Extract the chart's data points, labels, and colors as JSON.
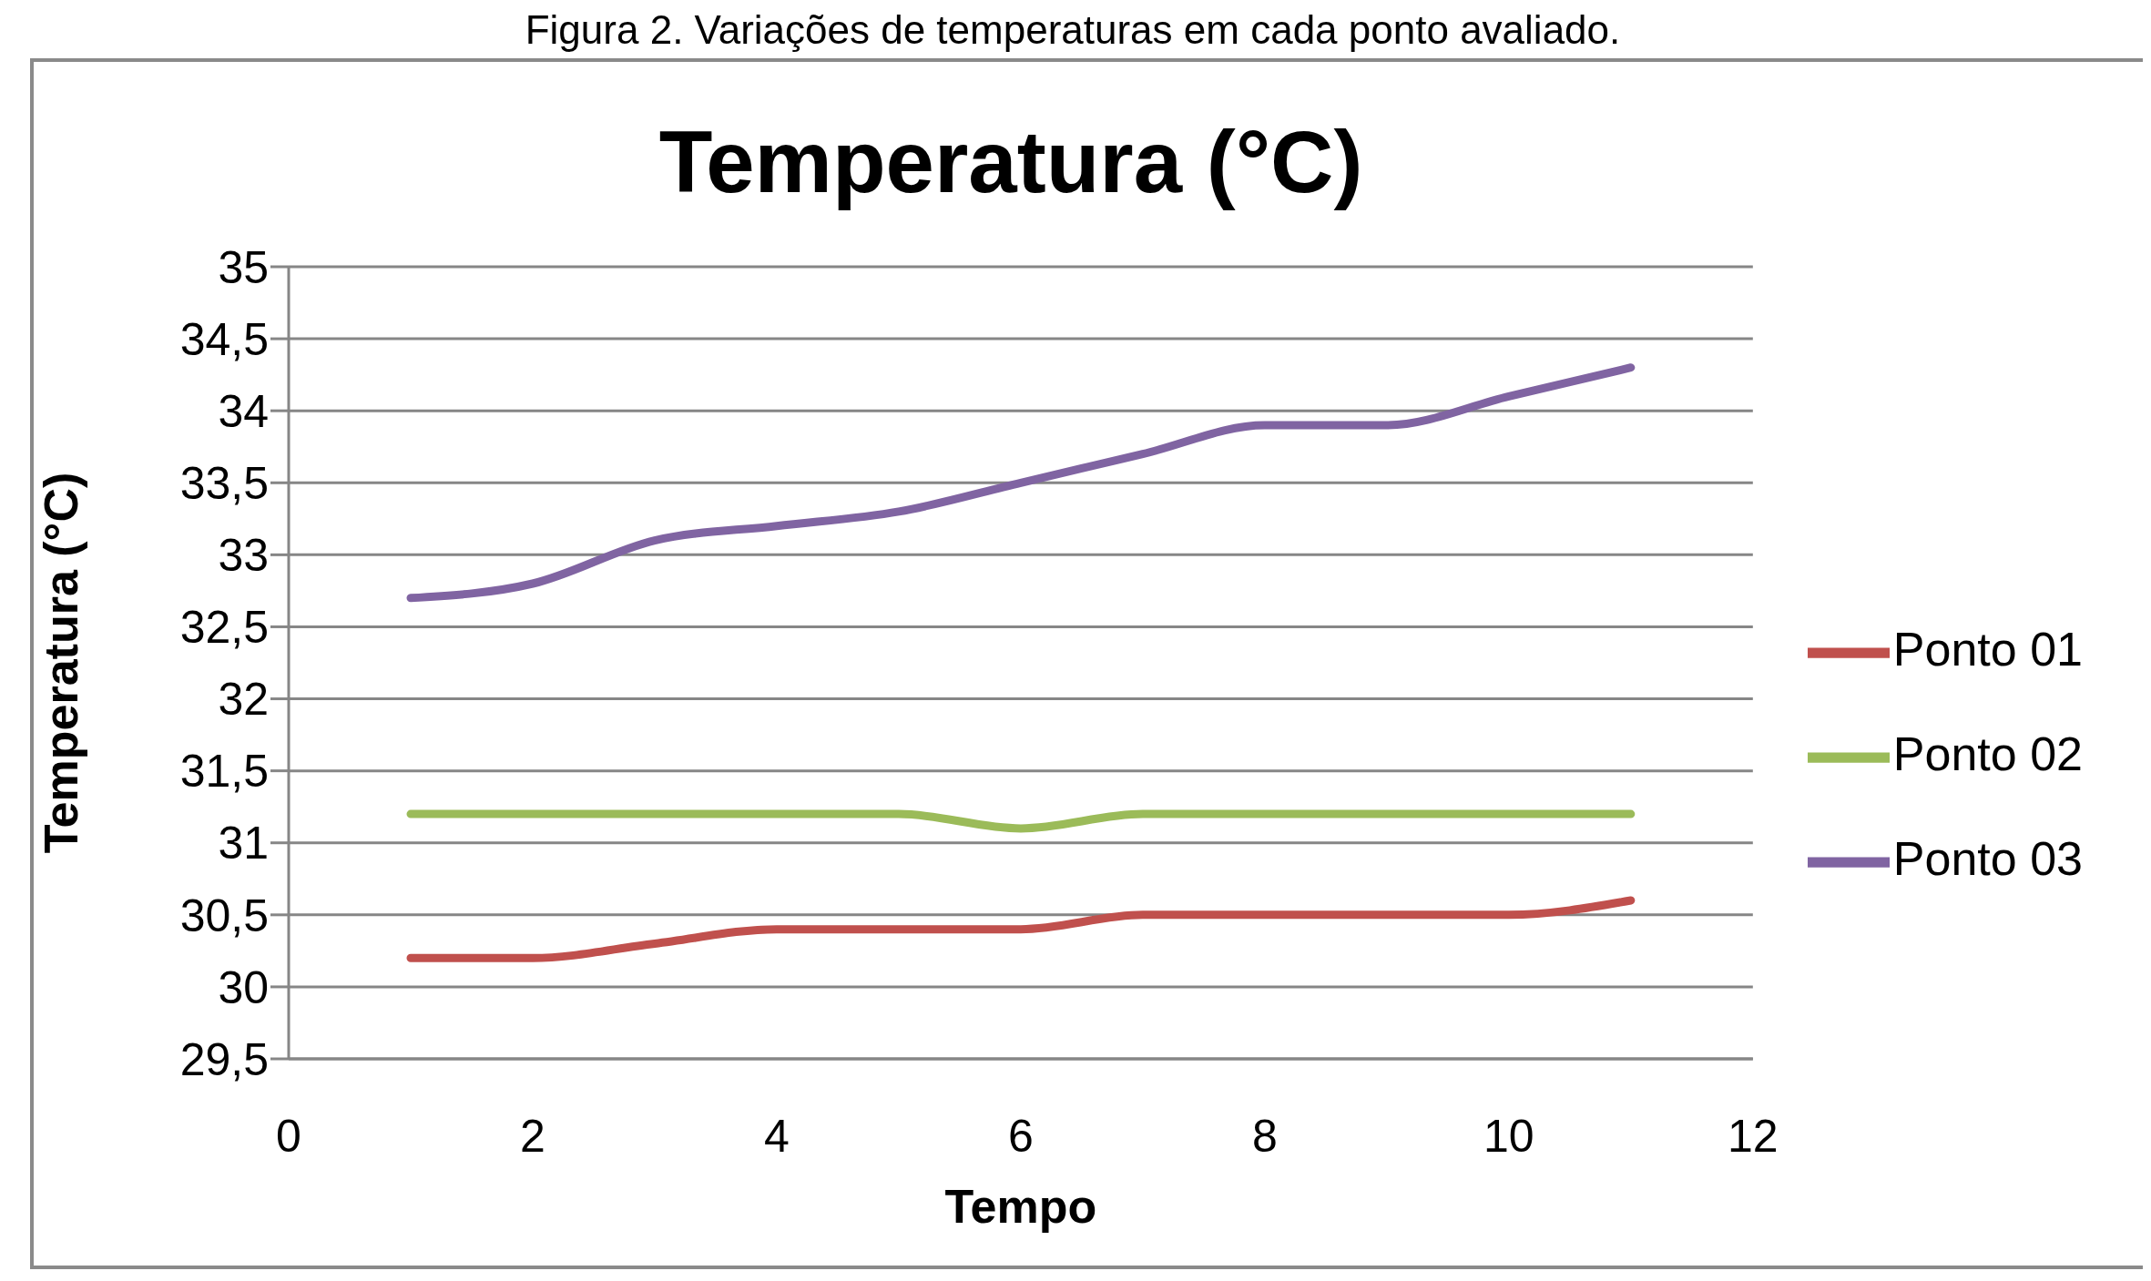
{
  "chart_data": {
    "type": "line",
    "title": "Temperatura (°C)",
    "xlabel": "Tempo",
    "ylabel": "Temperatura (°C)",
    "annotations": [
      "Figura 2. Variações de temperaturas em cada ponto avaliado."
    ],
    "x": [
      1,
      2,
      3,
      4,
      5,
      6,
      7,
      8,
      9,
      10,
      11
    ],
    "series": [
      {
        "name": "Ponto 01",
        "color": "#c0504d",
        "values": [
          30.2,
          30.2,
          30.3,
          30.4,
          30.4,
          30.4,
          30.5,
          30.5,
          30.5,
          30.5,
          30.6
        ]
      },
      {
        "name": "Ponto 02",
        "color": "#9bbb59",
        "values": [
          31.2,
          31.2,
          31.2,
          31.2,
          31.2,
          31.1,
          31.2,
          31.2,
          31.2,
          31.2,
          31.2
        ]
      },
      {
        "name": "Ponto 03",
        "color": "#8064a2",
        "values": [
          32.7,
          32.8,
          33.1,
          33.2,
          33.3,
          33.5,
          33.7,
          33.9,
          33.9,
          34.1,
          34.3
        ]
      }
    ],
    "xlim": [
      0,
      12
    ],
    "xticks": [
      0,
      2,
      4,
      6,
      8,
      10,
      12
    ],
    "ylim": [
      29.5,
      35
    ],
    "yticks": [
      {
        "value": 29.5,
        "label": "29,5"
      },
      30,
      {
        "value": 30.5,
        "label": "30,5"
      },
      31,
      {
        "value": 31.5,
        "label": "31,5"
      },
      32,
      {
        "value": 32.5,
        "label": "32,5"
      },
      33,
      {
        "value": 33.5,
        "label": "33,5"
      },
      34,
      {
        "value": 34.5,
        "label": "34,5"
      },
      35
    ],
    "grid": "y",
    "legend": "right",
    "marker": "none",
    "line_style": "solid"
  }
}
